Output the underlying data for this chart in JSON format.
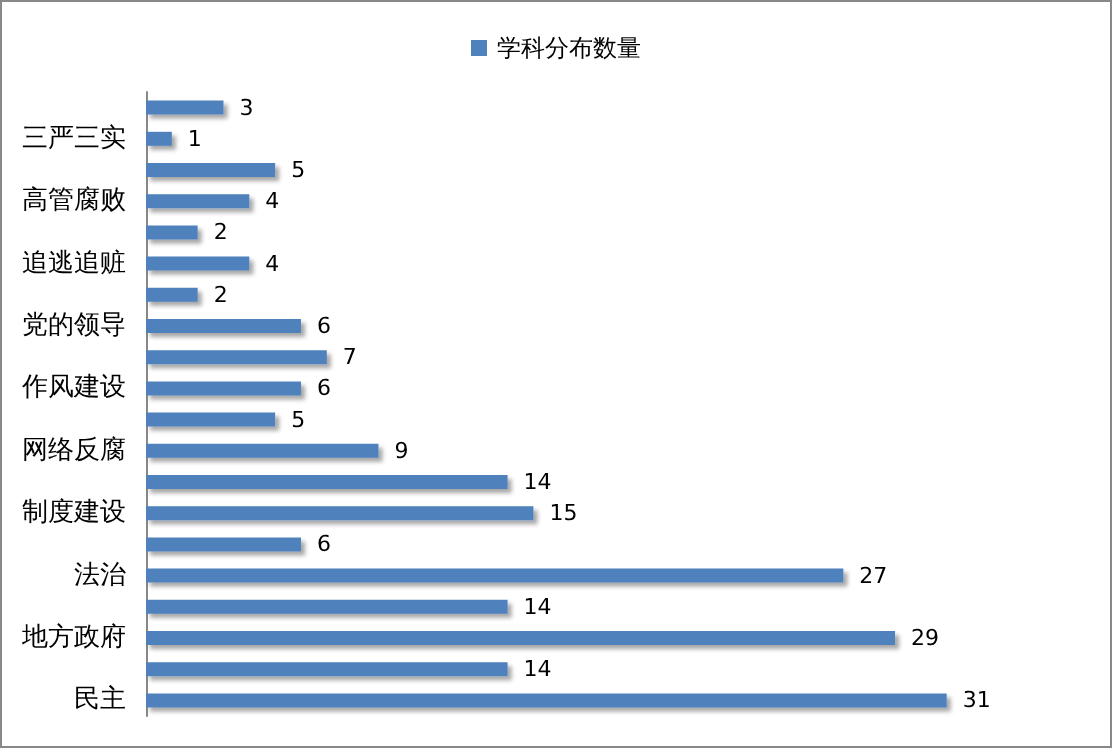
{
  "chart_data": {
    "type": "bar",
    "orientation": "horizontal",
    "categories": [
      null,
      "三严三实",
      null,
      "高管腐败",
      null,
      "追逃追赃",
      null,
      "党的领导",
      null,
      "作风建设",
      null,
      "网络反腐",
      null,
      "制度建设",
      null,
      "法治",
      null,
      "地方政府",
      null,
      "民主"
    ],
    "series": [
      {
        "name": "学科分布数量",
        "color": "#4f81bd",
        "values": [
          3,
          1,
          5,
          4,
          2,
          4,
          2,
          6,
          7,
          6,
          5,
          9,
          14,
          15,
          6,
          27,
          14,
          29,
          14,
          31
        ]
      }
    ],
    "data_labels": true,
    "legend": "top",
    "tick_labels": "y"
  }
}
